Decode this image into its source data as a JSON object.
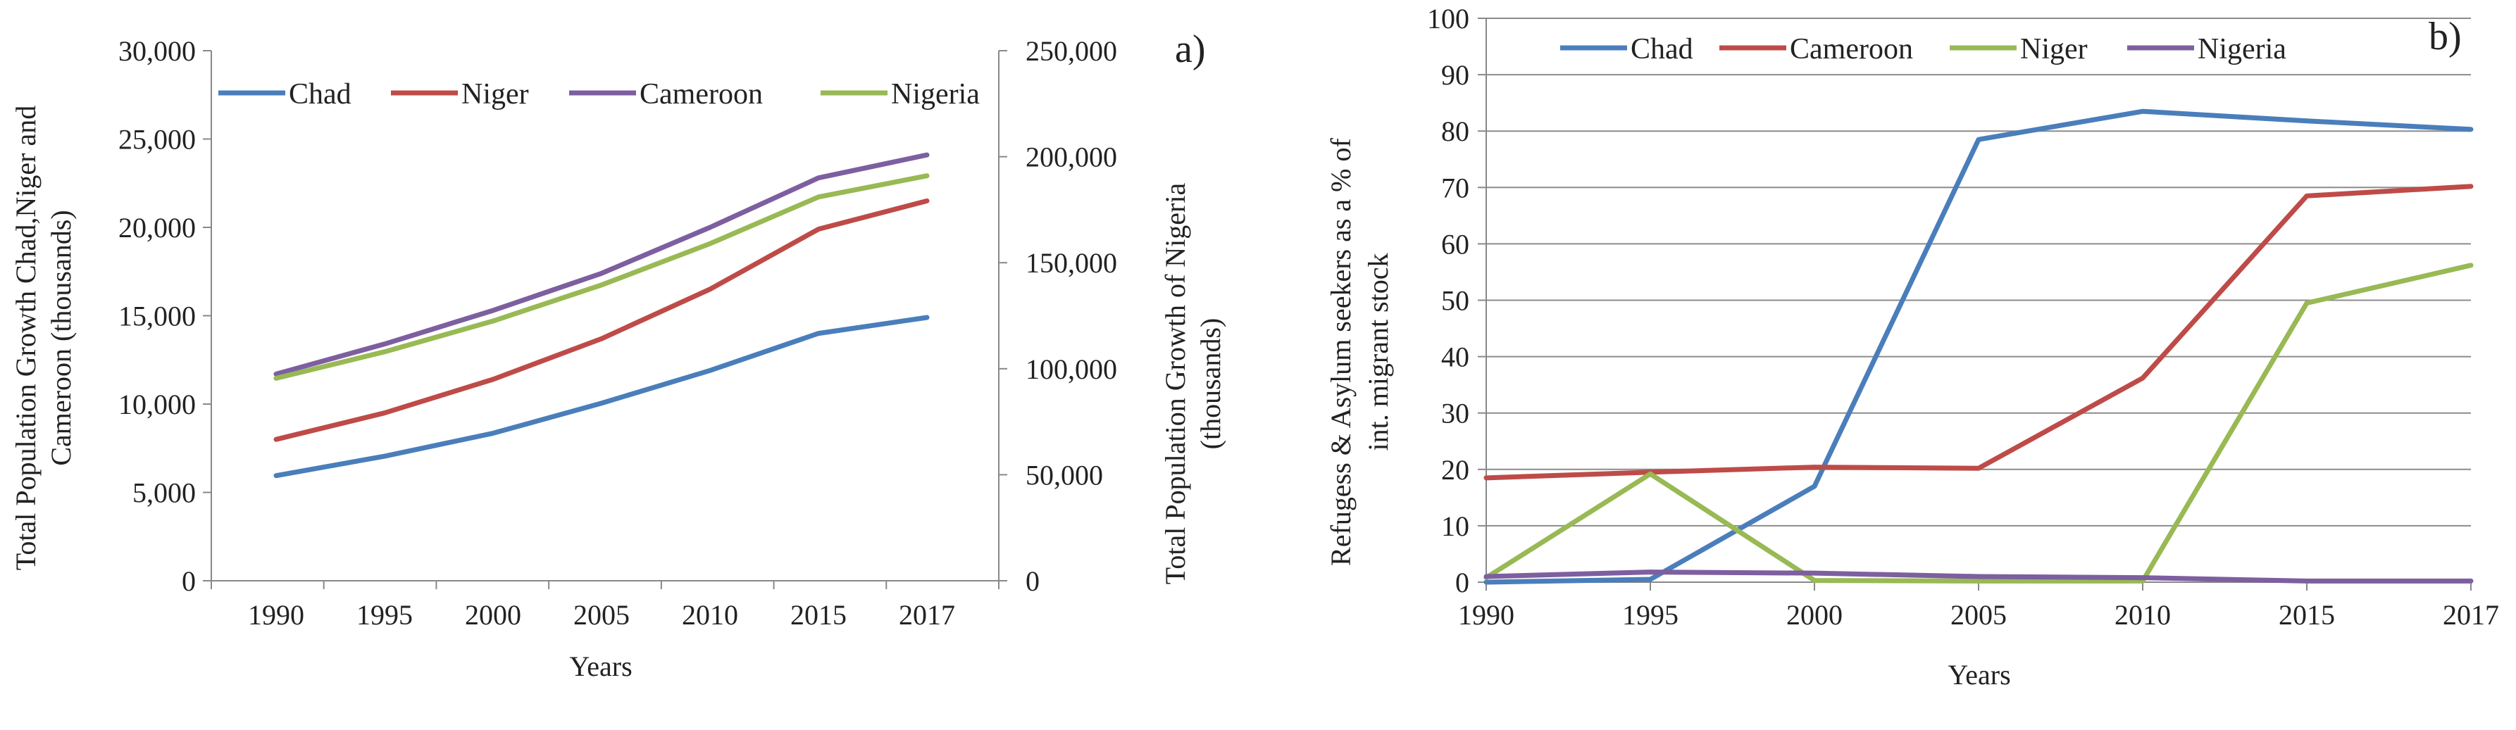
{
  "chart_data": [
    {
      "id": "a",
      "type": "line",
      "panel_label": "a)",
      "title": "",
      "xlabel": "Years",
      "ylabel_lines": [
        "Total Population Growth Chad,Niger and",
        "Cameroon (thousands)"
      ],
      "y2label_lines": [
        "Total Population Growth of Nigeria",
        "(thousands)"
      ],
      "categories": [
        "1990",
        "1995",
        "2000",
        "2005",
        "2010",
        "2015",
        "2017"
      ],
      "ylim": [
        0,
        30000
      ],
      "yticks": [
        0,
        5000,
        10000,
        15000,
        20000,
        25000,
        30000
      ],
      "ytick_labels": [
        "0",
        "5,000",
        "10,000",
        "15,000",
        "20,000",
        "25,000",
        "30,000"
      ],
      "y2lim": [
        0,
        250000
      ],
      "y2ticks": [
        0,
        50000,
        100000,
        150000,
        200000,
        250000
      ],
      "y2tick_labels": [
        "0",
        "50,000",
        "100,000",
        "150,000",
        "200,000",
        "250,000"
      ],
      "grid": false,
      "legend_position": "top",
      "series": [
        {
          "name": "Chad",
          "axis": "left",
          "color": "#4A7EBB",
          "values": [
            5950,
            7050,
            8350,
            10050,
            11900,
            14000,
            14900
          ]
        },
        {
          "name": "Niger",
          "axis": "left",
          "color": "#BE4B48",
          "values": [
            8000,
            9500,
            11400,
            13700,
            16500,
            19900,
            21500
          ]
        },
        {
          "name": "Cameroon",
          "axis": "left",
          "color": "#7D5FA0",
          "values": [
            11700,
            13400,
            15300,
            17400,
            20000,
            22800,
            24100
          ]
        },
        {
          "name": "Nigeria",
          "axis": "right",
          "color": "#98B954",
          "values": [
            95500,
            108000,
            122500,
            139500,
            159000,
            181000,
            191000
          ]
        }
      ]
    },
    {
      "id": "b",
      "type": "line",
      "panel_label": "b)",
      "title": "",
      "xlabel": "Years",
      "ylabel_lines": [
        "Refugess & Asylum seekers as a % of",
        "int. migrant stock"
      ],
      "categories": [
        "1990",
        "1995",
        "2000",
        "2005",
        "2010",
        "2015",
        "2017"
      ],
      "ylim": [
        0,
        100
      ],
      "yticks": [
        0,
        10,
        20,
        30,
        40,
        50,
        60,
        70,
        80,
        90,
        100
      ],
      "ytick_labels": [
        "0",
        "10",
        "20",
        "30",
        "40",
        "50",
        "60",
        "70",
        "80",
        "90",
        "100"
      ],
      "grid": true,
      "legend_position": "top",
      "series": [
        {
          "name": "Chad",
          "color": "#4A7EBB",
          "values": [
            0,
            0.5,
            17,
            78.5,
            83.5,
            81.8,
            80.3
          ]
        },
        {
          "name": "Cameroon",
          "color": "#BE4B48",
          "values": [
            18.5,
            19.5,
            20.4,
            20.2,
            36.2,
            68.5,
            70.2
          ]
        },
        {
          "name": "Niger",
          "color": "#98B954",
          "values": [
            0.8,
            19.2,
            0.3,
            0.2,
            0.2,
            49.5,
            56.2
          ]
        },
        {
          "name": "Nigeria",
          "color": "#7D5FA0",
          "values": [
            1,
            1.8,
            1.6,
            1,
            0.8,
            0.2,
            0.2
          ]
        }
      ]
    }
  ]
}
